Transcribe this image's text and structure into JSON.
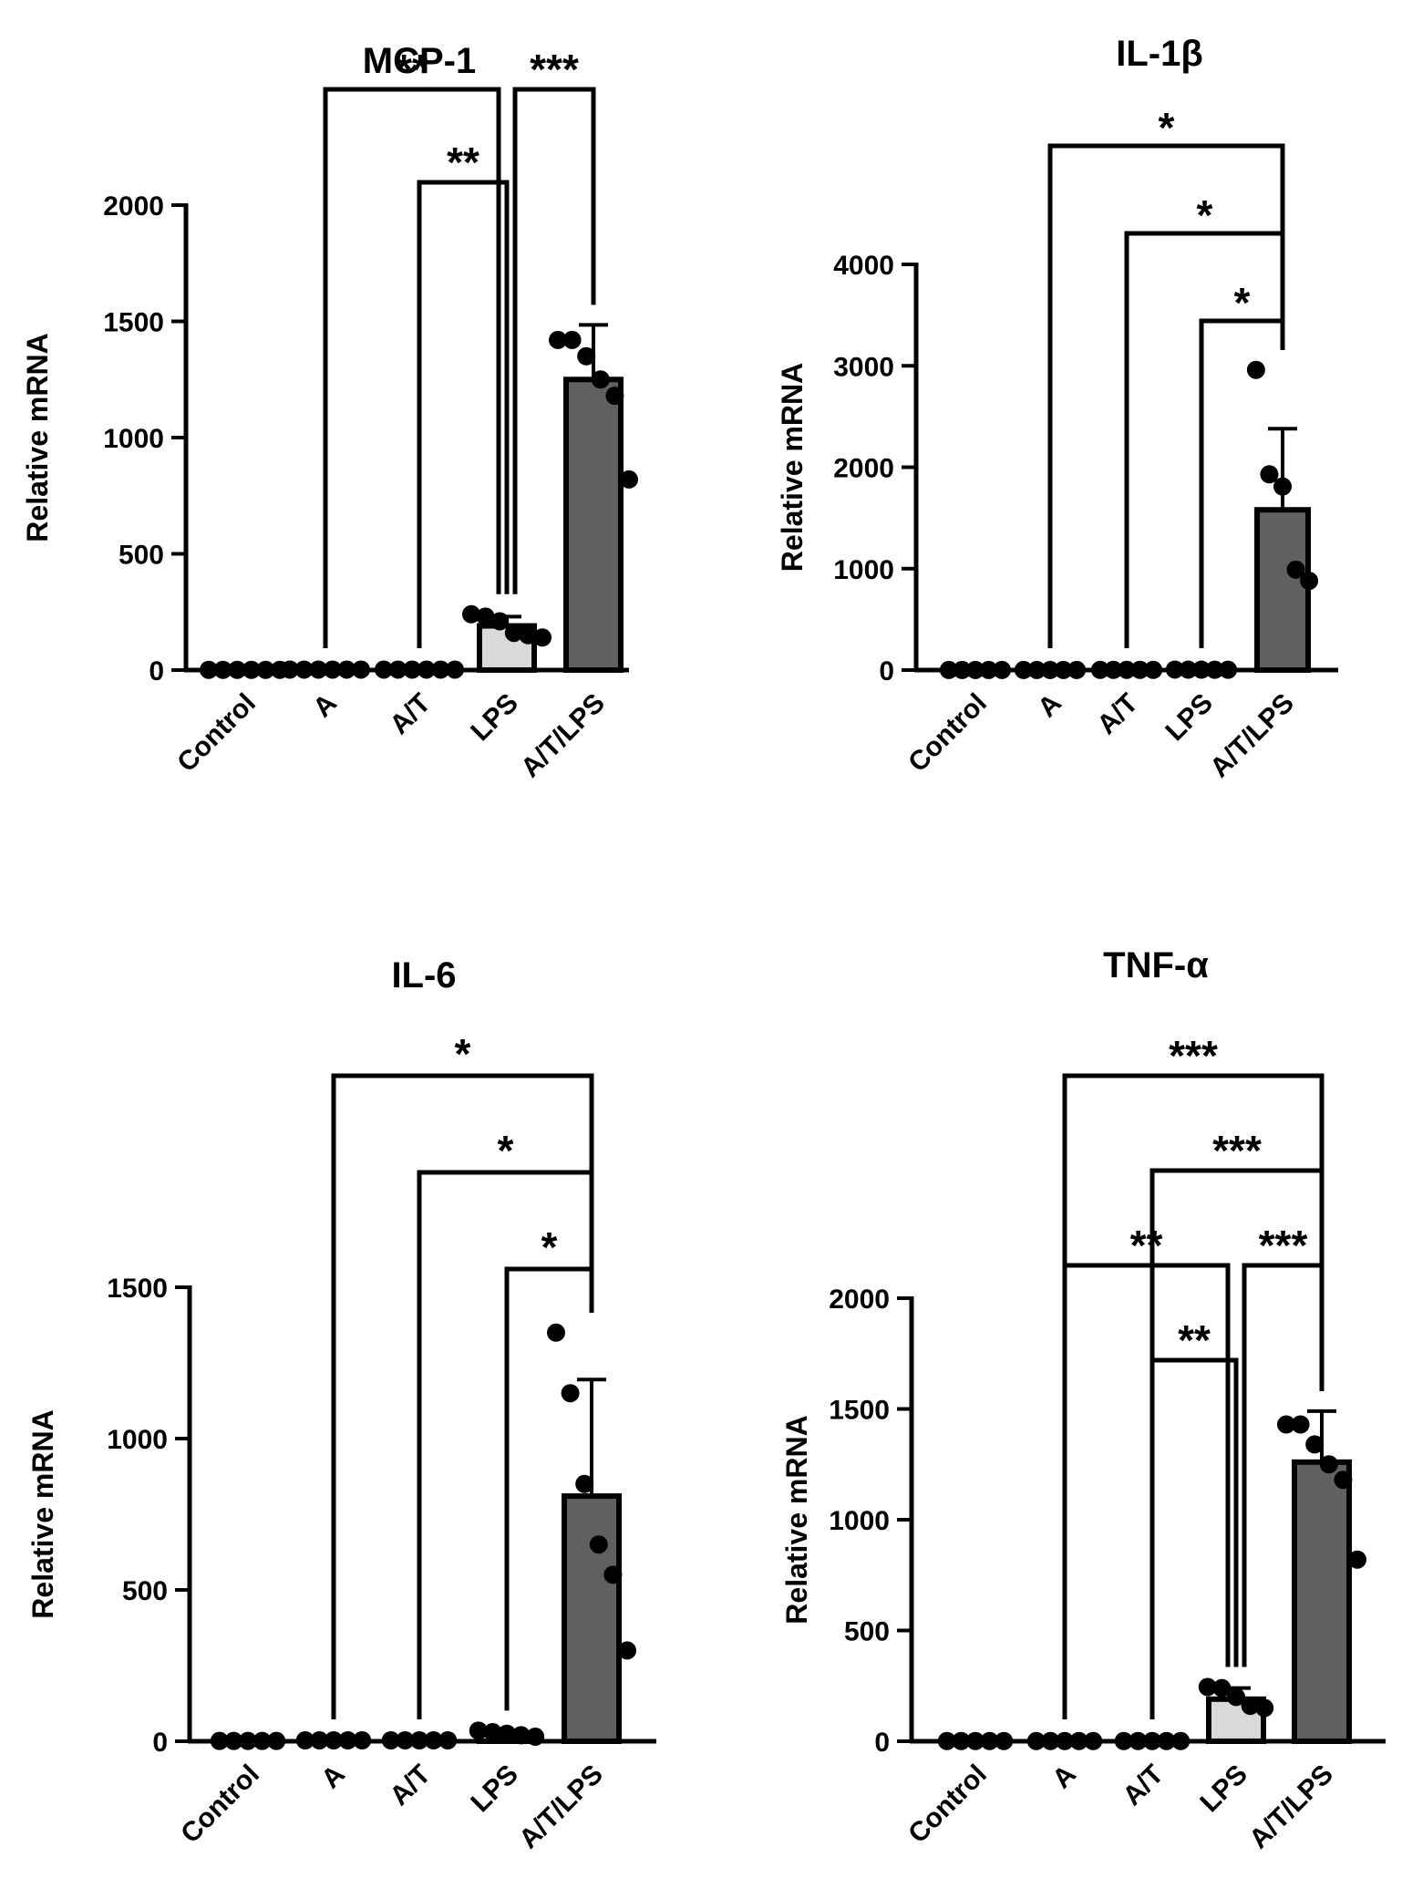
{
  "figure_title": "",
  "chart_data": [
    {
      "id": "mcp1",
      "type": "bar",
      "title": "MCP-1",
      "ylabel": "Relative mRNA",
      "xlabel": "",
      "ylim": [
        0,
        2000
      ],
      "yticks": [
        0,
        500,
        1000,
        1500,
        2000
      ],
      "categories": [
        "Control",
        "A",
        "A/T",
        "LPS",
        "A/T/LPS"
      ],
      "values": [
        1,
        2,
        2,
        190,
        1250
      ],
      "sd": [
        0,
        0,
        0,
        40,
        235
      ],
      "bar_colors": [
        "#ffffff",
        "#ffffff",
        "#ffffff",
        "#d9d9d9",
        "#606060"
      ],
      "points": [
        [
          1,
          1,
          1,
          1,
          1,
          1
        ],
        [
          2,
          2,
          2,
          2,
          2,
          2
        ],
        [
          2,
          2,
          2,
          2,
          2,
          2
        ],
        [
          240,
          230,
          210,
          160,
          150,
          140
        ],
        [
          1420,
          1420,
          1350,
          1250,
          1180,
          820
        ]
      ],
      "comparisons": [
        {
          "from": 1,
          "to": 3,
          "stars": "**",
          "level": 2,
          "split_end": true
        },
        {
          "from": 3,
          "to": 4,
          "stars": "***",
          "level": 2,
          "split_start": true
        },
        {
          "from": 2,
          "to": 3,
          "stars": "**",
          "level": 1
        }
      ]
    },
    {
      "id": "il1b",
      "type": "bar",
      "title": "IL-1β",
      "ylabel": "Relative mRNA",
      "xlabel": "",
      "ylim": [
        0,
        4000
      ],
      "yticks": [
        0,
        1000,
        2000,
        3000,
        4000
      ],
      "categories": [
        "Control",
        "A",
        "A/T",
        "LPS",
        "A/T/LPS"
      ],
      "values": [
        1,
        1,
        2,
        4,
        1580
      ],
      "sd": [
        0,
        0,
        0,
        0,
        800
      ],
      "bar_colors": [
        "#ffffff",
        "#ffffff",
        "#ffffff",
        "#d9d9d9",
        "#606060"
      ],
      "points": [
        [
          1,
          1,
          1,
          1,
          1
        ],
        [
          1,
          1,
          1,
          1,
          1
        ],
        [
          2,
          2,
          2,
          2,
          2
        ],
        [
          5,
          4,
          4,
          3,
          3
        ],
        [
          2960,
          1930,
          1810,
          990,
          880
        ]
      ],
      "comparisons": [
        {
          "from": 1,
          "to": 4,
          "stars": "*",
          "level": 3
        },
        {
          "from": 2,
          "to": 4,
          "stars": "*",
          "level": 2
        },
        {
          "from": 3,
          "to": 4,
          "stars": "*",
          "level": 1
        }
      ]
    },
    {
      "id": "il6",
      "type": "bar",
      "title": "IL-6",
      "ylabel": "Relative mRNA",
      "xlabel": "",
      "ylim": [
        0,
        1500
      ],
      "yticks": [
        0,
        500,
        1000,
        1500
      ],
      "categories": [
        "Control",
        "A",
        "A/T",
        "LPS",
        "A/T/LPS"
      ],
      "values": [
        1,
        3,
        3,
        25,
        810
      ],
      "sd": [
        0,
        0,
        0,
        0,
        385
      ],
      "bar_colors": [
        "#ffffff",
        "#ffffff",
        "#ffffff",
        "#d9d9d9",
        "#606060"
      ],
      "points": [
        [
          1,
          1,
          1,
          1,
          1
        ],
        [
          3,
          3,
          3,
          3,
          3
        ],
        [
          3,
          3,
          3,
          3,
          3
        ],
        [
          35,
          30,
          25,
          20,
          15
        ],
        [
          1350,
          1150,
          850,
          650,
          550,
          300
        ]
      ],
      "comparisons": [
        {
          "from": 1,
          "to": 4,
          "stars": "*",
          "level": 3
        },
        {
          "from": 2,
          "to": 4,
          "stars": "*",
          "level": 2
        },
        {
          "from": 3,
          "to": 4,
          "stars": "*",
          "level": 1
        }
      ]
    },
    {
      "id": "tnfa",
      "type": "bar",
      "title": "TNF-α",
      "ylabel": "Relative mRNA",
      "xlabel": "",
      "ylim": [
        0,
        2000
      ],
      "yticks": [
        0,
        500,
        1000,
        1500,
        2000
      ],
      "categories": [
        "Control",
        "A",
        "A/T",
        "LPS",
        "A/T/LPS"
      ],
      "values": [
        1,
        1,
        1,
        190,
        1260
      ],
      "sd": [
        0,
        0,
        0,
        50,
        230
      ],
      "bar_colors": [
        "#ffffff",
        "#ffffff",
        "#ffffff",
        "#d9d9d9",
        "#606060"
      ],
      "points": [
        [
          1,
          1,
          1,
          1,
          1
        ],
        [
          1,
          1,
          1,
          1,
          1
        ],
        [
          1,
          1,
          1,
          1,
          1
        ],
        [
          245,
          240,
          200,
          160,
          150
        ],
        [
          1430,
          1430,
          1340,
          1250,
          1180,
          820
        ]
      ],
      "comparisons": [
        {
          "from": 1,
          "to": 4,
          "stars": "***",
          "level": 4
        },
        {
          "from": 2,
          "to": 4,
          "stars": "***",
          "level": 3
        },
        {
          "from": 1,
          "to": 3,
          "stars": "**",
          "level": 2,
          "split_end": true
        },
        {
          "from": 3,
          "to": 4,
          "stars": "***",
          "level": 2,
          "split_start": true
        },
        {
          "from": 2,
          "to": 3,
          "stars": "**",
          "level": 1
        }
      ]
    }
  ]
}
